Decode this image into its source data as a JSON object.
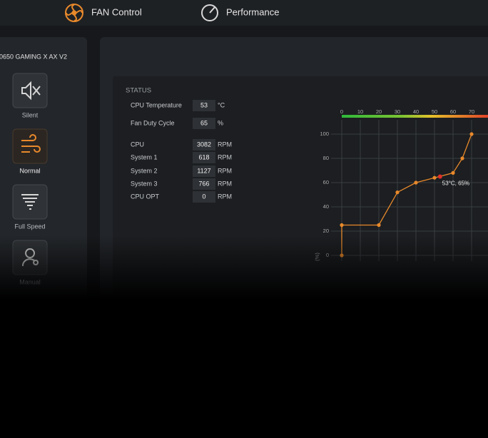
{
  "nav": {
    "items": [
      "FAN Control",
      "Performance"
    ]
  },
  "device": "0650 GAMING X AX V2",
  "modes": [
    {
      "label": "Silent",
      "active": false
    },
    {
      "label": "Normal",
      "active": true
    },
    {
      "label": "Full Speed",
      "active": false
    },
    {
      "label": "Manual",
      "active": false
    }
  ],
  "status": {
    "title": "STATUS",
    "rows": [
      {
        "label": "CPU Temperature",
        "value": 53,
        "unit": "°C"
      },
      {
        "label": "Fan Duty Cycle",
        "value": 65,
        "unit": "%"
      },
      {
        "label": "CPU",
        "value": 3082,
        "unit": "RPM"
      },
      {
        "label": "System 1",
        "value": 618,
        "unit": "RPM"
      },
      {
        "label": "System 2",
        "value": 1127,
        "unit": "RPM"
      },
      {
        "label": "System 3",
        "value": 766,
        "unit": "RPM"
      },
      {
        "label": "CPU OPT",
        "value": 0,
        "unit": "RPM"
      }
    ]
  },
  "chart_data": {
    "type": "line",
    "ylabel": "(%)",
    "x": [
      0,
      0,
      20,
      30,
      40,
      50,
      60,
      65,
      70
    ],
    "series": [
      {
        "values": [
          0,
          25,
          25,
          52,
          60,
          64,
          68,
          80,
          100
        ],
        "color": "#e8892b"
      }
    ],
    "current": {
      "x": 53,
      "y": 65,
      "label": "53°C, 65%",
      "color": "#e0302a"
    },
    "xlim": [
      0,
      80
    ],
    "ylim": [
      0,
      100
    ],
    "xticks": [
      0,
      10,
      20,
      30,
      40,
      50,
      60,
      70
    ],
    "yticks": [
      0,
      20,
      40,
      60,
      80,
      100
    ],
    "grid": true
  }
}
